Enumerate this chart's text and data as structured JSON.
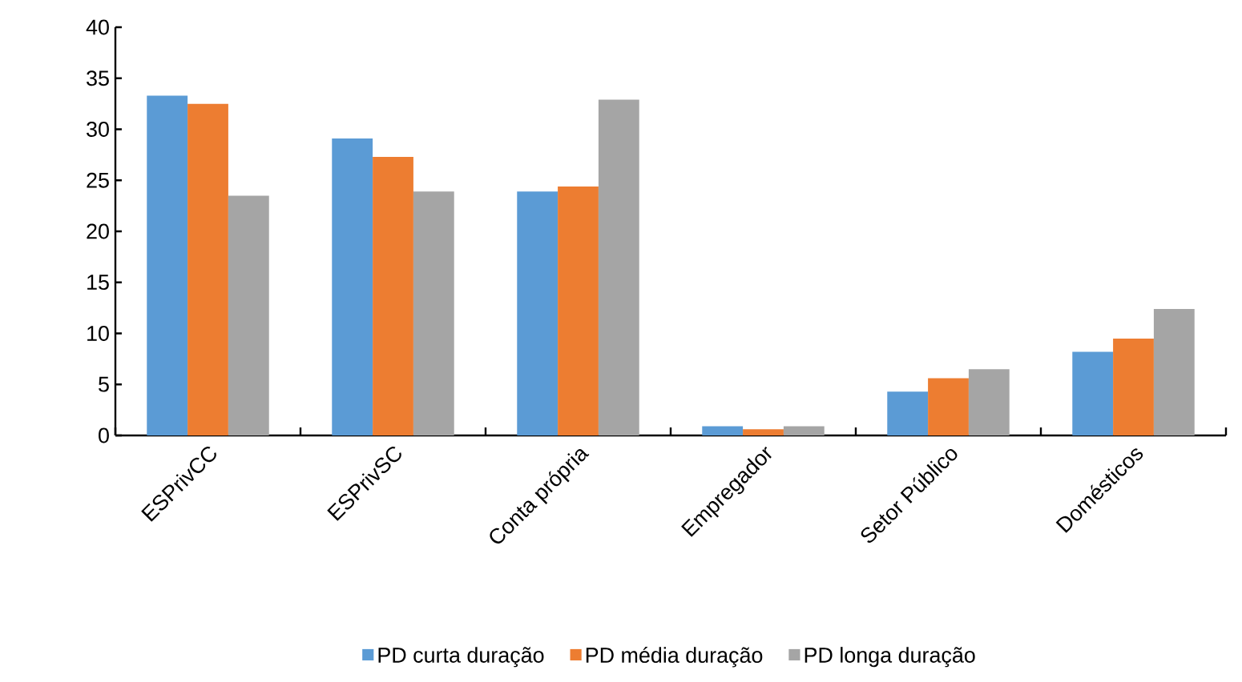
{
  "chart_data": {
    "type": "bar",
    "categories": [
      "ESPrivCC",
      "ESPrivSC",
      "Conta própria",
      "Empregador",
      "Setor Público",
      "Domésticos"
    ],
    "series": [
      {
        "name": "PD curta duração",
        "color": "#5b9bd5",
        "values": [
          33.3,
          29.1,
          23.9,
          0.9,
          4.3,
          8.2
        ]
      },
      {
        "name": "PD média duração",
        "color": "#ed7d31",
        "values": [
          32.5,
          27.3,
          24.4,
          0.6,
          5.6,
          9.5
        ]
      },
      {
        "name": "PD longa duração",
        "color": "#a5a5a5",
        "values": [
          23.5,
          23.9,
          32.9,
          0.9,
          6.5,
          12.4
        ]
      }
    ],
    "ylim": [
      0,
      40
    ],
    "yticks": [
      0,
      5,
      10,
      15,
      20,
      25,
      30,
      35,
      40
    ],
    "grid": false,
    "legend": "bottom"
  }
}
